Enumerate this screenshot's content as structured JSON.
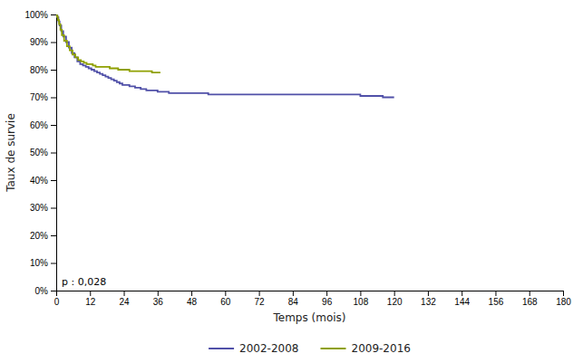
{
  "chart_data": {
    "type": "line",
    "xlabel": "Temps (mois)",
    "ylabel": "Taux de survie",
    "annotation": "p : 0,028",
    "xlim": [
      0,
      180
    ],
    "ylim": [
      0,
      100
    ],
    "xticks": [
      0,
      12,
      24,
      36,
      48,
      60,
      72,
      84,
      96,
      108,
      120,
      132,
      144,
      156,
      168,
      180
    ],
    "yticks": [
      {
        "value": 0,
        "label": "0%"
      },
      {
        "value": 10,
        "label": "10%"
      },
      {
        "value": 20,
        "label": "20%"
      },
      {
        "value": 30,
        "label": "30%"
      },
      {
        "value": 40,
        "label": "40%"
      },
      {
        "value": 50,
        "label": "50%"
      },
      {
        "value": 60,
        "label": "60%"
      },
      {
        "value": 70,
        "label": "70%"
      },
      {
        "value": 80,
        "label": "80%"
      },
      {
        "value": 90,
        "label": "90%"
      },
      {
        "value": 100,
        "label": "100%"
      }
    ],
    "grid": false,
    "legend": "bottom",
    "series": [
      {
        "name": "2002-2008",
        "color": "#5050a8",
        "line_style": "step",
        "x": [
          0,
          0.4,
          0.8,
          1.2,
          1.8,
          2.5,
          3.5,
          4.5,
          5.5,
          6.5,
          7.5,
          8.5,
          9.5,
          10.5,
          11.5,
          12.5,
          13.5,
          14.5,
          15.5,
          16.5,
          17.5,
          18.5,
          19.5,
          20.5,
          21.5,
          22.5,
          23.5,
          24.5,
          26,
          28,
          30,
          32,
          34,
          36,
          38,
          40,
          42,
          46,
          50,
          54,
          58,
          62,
          66,
          70,
          74,
          78,
          84,
          90,
          96,
          102,
          108,
          112,
          116,
          120
        ],
        "values": [
          100,
          99,
          97.5,
          96,
          94,
          92,
          90,
          88,
          86,
          84.5,
          83,
          82,
          81.5,
          81,
          80.5,
          80,
          79.5,
          79,
          78.5,
          78,
          77.5,
          77,
          76.5,
          76,
          75.5,
          75,
          74.5,
          74.5,
          74,
          73.5,
          73,
          72.5,
          72.5,
          72,
          72,
          71.5,
          71.5,
          71.5,
          71.5,
          71,
          71,
          71,
          71,
          71,
          71,
          71,
          71,
          71,
          71,
          71,
          70.5,
          70.5,
          70,
          70
        ]
      },
      {
        "name": "2009-2016",
        "color": "#8fa000",
        "line_style": "step",
        "x": [
          0,
          0.3,
          0.6,
          1,
          1.5,
          2,
          2.8,
          3.8,
          4.8,
          5.8,
          6.8,
          7.8,
          8.8,
          9.8,
          10.8,
          12,
          13,
          14,
          15,
          16,
          17,
          18,
          19,
          20,
          21,
          22,
          23,
          24,
          25,
          26,
          28,
          30,
          32,
          34,
          36,
          37
        ],
        "values": [
          100,
          99.2,
          98,
          96.5,
          94.5,
          92.5,
          90.5,
          88.5,
          87,
          85.5,
          84.5,
          83.5,
          83,
          82.5,
          82,
          82,
          81.5,
          81,
          81,
          81,
          81,
          81,
          80.5,
          80.5,
          80.5,
          80,
          80,
          80,
          80,
          79.5,
          79.5,
          79.5,
          79.5,
          79,
          79,
          79
        ]
      }
    ]
  }
}
